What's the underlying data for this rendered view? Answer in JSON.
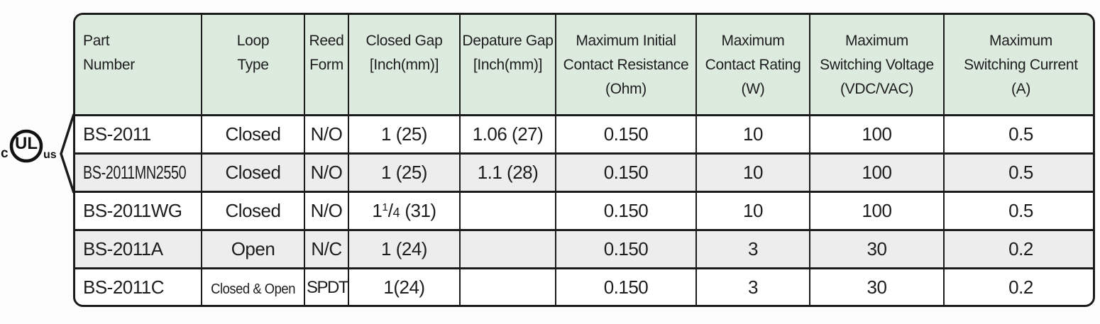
{
  "certification": {
    "mark_name": "cULus certification mark",
    "c": "c",
    "ul": "UL",
    "us": "us"
  },
  "colors": {
    "header_bg": "#dcebdd",
    "row_alt_bg": "#ededed",
    "border": "#1b1b1b",
    "text": "#1d1d1f"
  },
  "table": {
    "columns": [
      {
        "id": "part_number",
        "label": "Part\nNumber",
        "align": "left"
      },
      {
        "id": "loop_type",
        "label": "Loop\nType",
        "align": "center"
      },
      {
        "id": "reed_form",
        "label": "Reed\nForm",
        "align": "center"
      },
      {
        "id": "closed_gap",
        "label": "Closed Gap\n[Inch(mm)]",
        "align": "center"
      },
      {
        "id": "departure_gap",
        "label": "Depature Gap\n[Inch(mm)]",
        "align": "center"
      },
      {
        "id": "max_initial_contact_resistance",
        "label": "Maximum Initial\nContact Resistance\n(Ohm)",
        "align": "center"
      },
      {
        "id": "max_contact_rating",
        "label": "Maximum\nContact Rating\n(W)",
        "align": "center"
      },
      {
        "id": "max_switching_voltage",
        "label": "Maximum\nSwitching Voltage\n(VDC/VAC)",
        "align": "center"
      },
      {
        "id": "max_switching_current",
        "label": "Maximum\nSwitching Current\n(A)",
        "align": "center"
      }
    ],
    "rows": [
      {
        "cells": [
          "BS-2011",
          "Closed",
          "N/O",
          "1 (25)",
          "1.06 (27)",
          "0.150",
          "10",
          "100",
          "0.5"
        ],
        "shaded": false,
        "ul_listed": true
      },
      {
        "cells": [
          "BS-2011MN2550",
          "Closed",
          "N/O",
          "1 (25)",
          "1.1 (28)",
          "0.150",
          "10",
          "100",
          "0.5"
        ],
        "shaded": true,
        "ul_listed": true
      },
      {
        "cells": [
          "BS-2011WG",
          "Closed",
          "N/O",
          {
            "parts": [
              {
                "t": "1"
              },
              {
                "t": "1",
                "style": "sup"
              },
              {
                "t": "/"
              },
              {
                "t": "4",
                "style": "den"
              },
              {
                "t": " (31)"
              }
            ]
          },
          "",
          "0.150",
          "10",
          "100",
          "0.5"
        ],
        "shaded": false,
        "ul_listed": false
      },
      {
        "cells": [
          "BS-2011A",
          "Open",
          "N/C",
          "1 (24)",
          "",
          "0.150",
          "3",
          "30",
          "0.2"
        ],
        "shaded": true,
        "ul_listed": false
      },
      {
        "cells": [
          "BS-2011C",
          "Closed & Open",
          "SPDT",
          "1(24)",
          "",
          "0.150",
          "3",
          "30",
          "0.2"
        ],
        "shaded": false,
        "ul_listed": false
      }
    ]
  }
}
